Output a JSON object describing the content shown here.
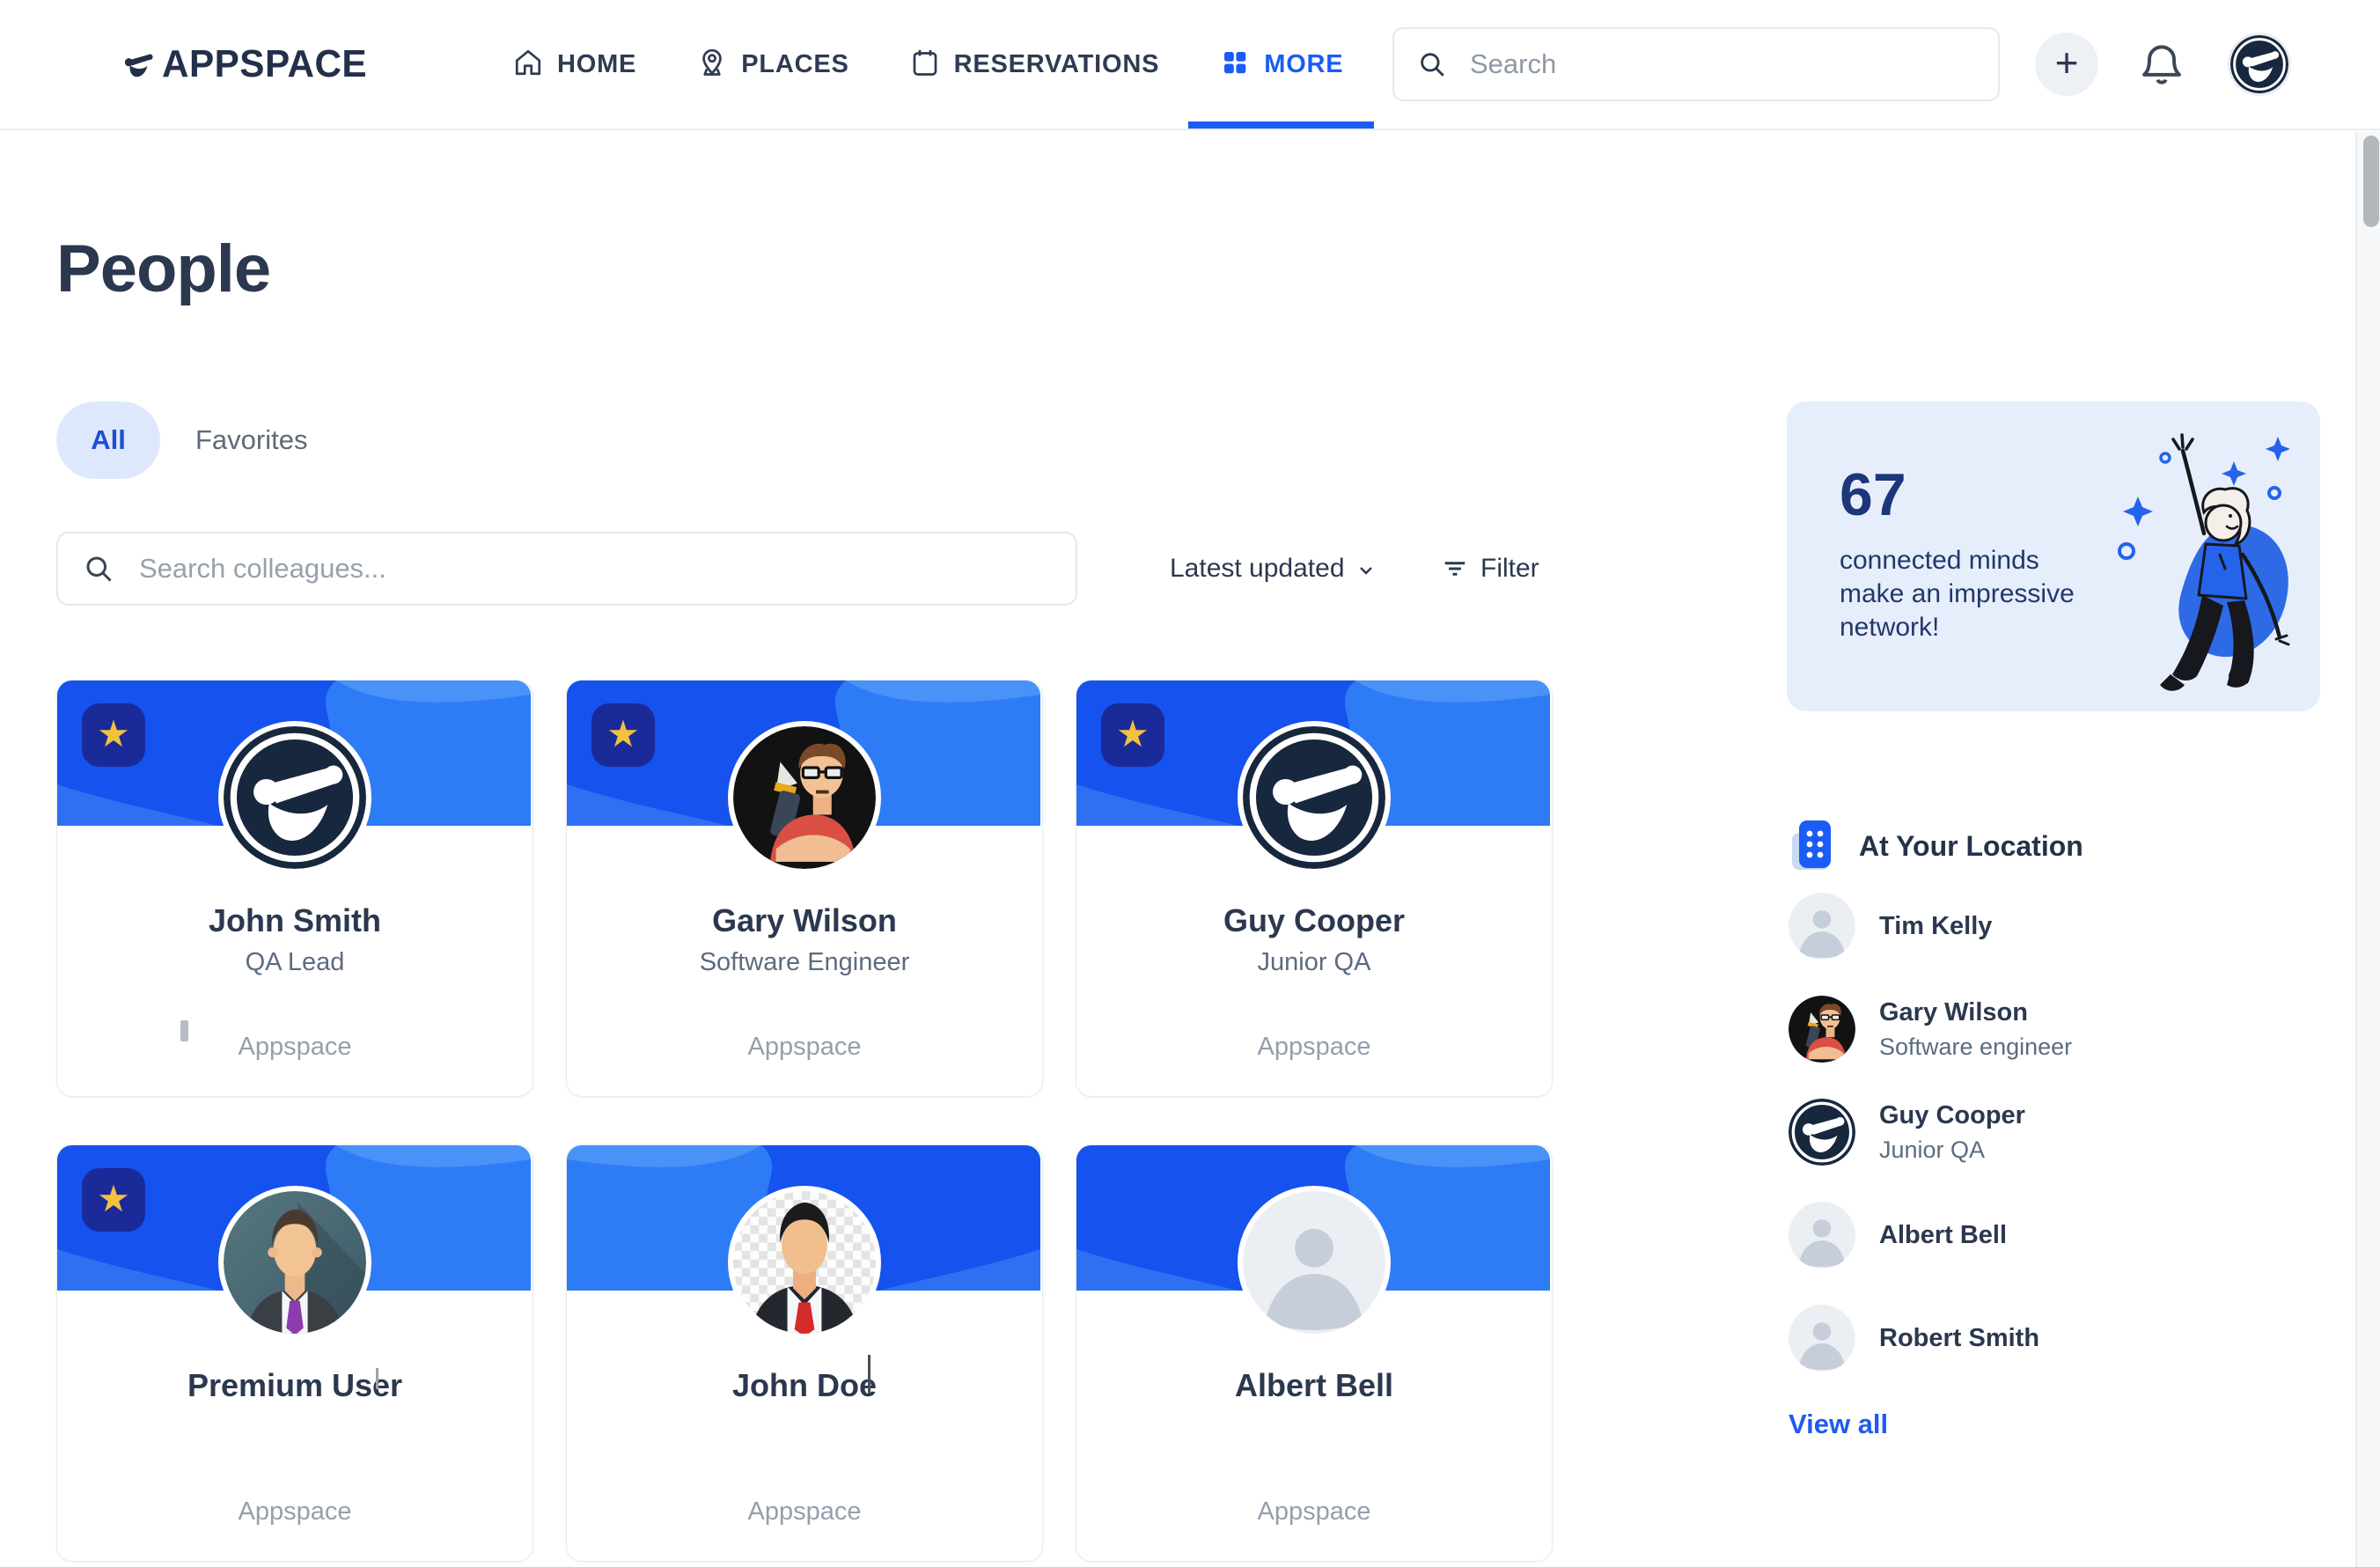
{
  "header": {
    "brand": "APPSPACE",
    "brand_icon": "appspace-bird-icon",
    "nav": [
      {
        "label": "HOME",
        "icon": "home-icon",
        "active": false
      },
      {
        "label": "PLACES",
        "icon": "map-pin-icon",
        "active": false
      },
      {
        "label": "RESERVATIONS",
        "icon": "calendar-icon",
        "active": false
      },
      {
        "label": "MORE",
        "icon": "grid-icon",
        "active": true
      }
    ],
    "search": {
      "placeholder": "Search",
      "icon": "search-icon"
    },
    "actions": [
      {
        "name": "add",
        "icon": "plus-icon"
      },
      {
        "name": "notifications",
        "icon": "bell-icon"
      },
      {
        "name": "account",
        "icon": "appspace-logo-avatar"
      }
    ]
  },
  "page": {
    "title": "People",
    "tabs": [
      {
        "label": "All",
        "active": true
      },
      {
        "label": "Favorites",
        "active": false
      }
    ],
    "search": {
      "placeholder": "Search colleagues...",
      "icon": "search-icon"
    },
    "sort": {
      "label": "Latest updated",
      "icon": "chevron-down-icon"
    },
    "filter": {
      "label": "Filter",
      "icon": "filter-icon"
    }
  },
  "people_cards": [
    {
      "name": "John Smith",
      "role": "QA Lead",
      "company": "Appspace",
      "favorite": true,
      "avatar": "appspace-logo",
      "artifacts": [
        "gray-bar"
      ]
    },
    {
      "name": "Gary Wilson",
      "role": "Software Engineer",
      "company": "Appspace",
      "favorite": true,
      "avatar": "cartoon-dev",
      "artifacts": []
    },
    {
      "name": "Guy Cooper",
      "role": "Junior QA",
      "company": "Appspace",
      "favorite": true,
      "avatar": "appspace-logo",
      "artifacts": []
    },
    {
      "name": "Premium User",
      "role": "",
      "company": "Appspace",
      "favorite": true,
      "avatar": "suit-purple-tie",
      "artifacts": [
        "cursor-short"
      ]
    },
    {
      "name": "John Doe",
      "role": "",
      "company": "Appspace",
      "favorite": false,
      "avatar": "suit-red-tie",
      "artifacts": [
        "cursor-long"
      ]
    },
    {
      "name": "Albert Bell",
      "role": "",
      "company": "Appspace",
      "favorite": false,
      "avatar": "placeholder",
      "artifacts": []
    }
  ],
  "network_widget": {
    "count": "67",
    "message": "connected minds make an impressive network!"
  },
  "location_section": {
    "title": "At Your Location",
    "icon": "building-icon",
    "people": [
      {
        "name": "Tim Kelly",
        "role": "",
        "avatar": "placeholder"
      },
      {
        "name": "Gary Wilson",
        "role": "Software engineer",
        "avatar": "cartoon-dev"
      },
      {
        "name": "Guy Cooper",
        "role": "Junior QA",
        "avatar": "appspace-logo"
      },
      {
        "name": "Albert Bell",
        "role": "",
        "avatar": "placeholder"
      },
      {
        "name": "Robert Smith",
        "role": "",
        "avatar": "placeholder"
      }
    ],
    "view_all_label": "View all"
  },
  "colors": {
    "accent_blue": "#1A5CF5",
    "banner_dark_blue": "#1652EE",
    "banner_light_blue": "#2E7BF6",
    "star_gold": "#F1C13F",
    "badge_navy": "#1A2A99",
    "widget_bg": "#E7EEFB",
    "text_navy": "#2B384F",
    "text_gray": "#5C6B80",
    "text_light_gray": "#949FAD",
    "link_blue": "#1F5BF0"
  }
}
